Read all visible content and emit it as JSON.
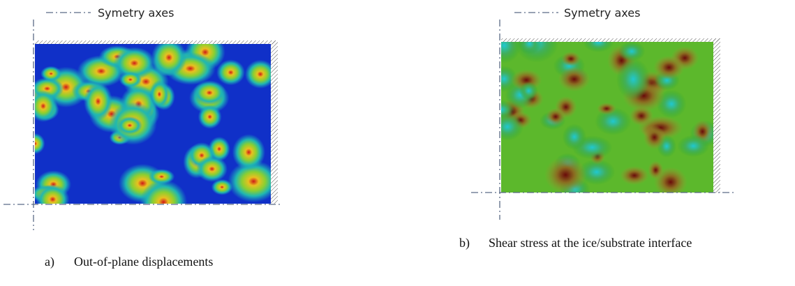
{
  "panels": [
    {
      "legend": "Symetry axes",
      "label": "a)",
      "caption": "Out-of-plane displacements"
    },
    {
      "legend": "Symetry axes",
      "label": "b)",
      "caption": "Shear stress at the ice/substrate interface"
    }
  ]
}
